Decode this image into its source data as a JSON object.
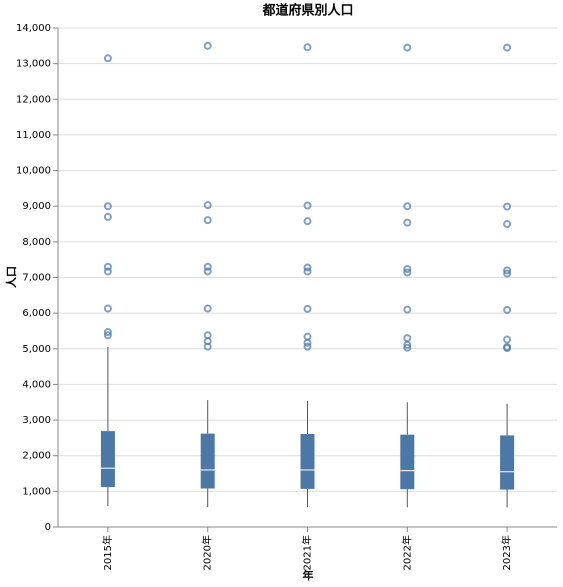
{
  "chart_data": {
    "type": "boxplot",
    "title": "都道府県別人口",
    "x_label": "年",
    "y_label": "人口",
    "categories": [
      "2015年",
      "2020年",
      "2021年",
      "2022年",
      "2023年"
    ],
    "color": "#4c78a8",
    "median_color": "#ffffff",
    "whisker_color": "#555555",
    "grid": true,
    "boxes": [
      {
        "min": 590,
        "q1": 1120,
        "median": 1650,
        "q3": 2690,
        "max": 5050,
        "outliers": [
          13150,
          9000,
          8700,
          7300,
          7170,
          6130,
          5470,
          5380
        ]
      },
      {
        "min": 560,
        "q1": 1080,
        "median": 1600,
        "q3": 2620,
        "max": 3560,
        "outliers": [
          13500,
          9030,
          8610,
          7300,
          7170,
          6130,
          5380,
          5210,
          5060
        ]
      },
      {
        "min": 560,
        "q1": 1070,
        "median": 1600,
        "q3": 2610,
        "max": 3530,
        "outliers": [
          13460,
          9020,
          8580,
          7280,
          7170,
          6120,
          5340,
          5170,
          5060
        ]
      },
      {
        "min": 550,
        "q1": 1060,
        "median": 1580,
        "q3": 2590,
        "max": 3500,
        "outliers": [
          13450,
          9000,
          8540,
          7240,
          7140,
          6100,
          5300,
          5110,
          5030
        ]
      },
      {
        "min": 550,
        "q1": 1050,
        "median": 1550,
        "q3": 2570,
        "max": 3460,
        "outliers": [
          13450,
          8990,
          8500,
          7200,
          7110,
          6090,
          5260,
          5050,
          5020
        ]
      }
    ],
    "ylim": [
      0,
      14000
    ],
    "yticks": [
      0,
      {
        "value": 1000,
        "label": "1,000"
      },
      {
        "value": 2000,
        "label": "2,000"
      },
      {
        "value": 3000,
        "label": "3,000"
      },
      {
        "value": 4000,
        "label": "4,000"
      },
      {
        "value": 5000,
        "label": "5,000"
      },
      {
        "value": 6000,
        "label": "6,000"
      },
      {
        "value": 7000,
        "label": "7,000"
      },
      {
        "value": 8000,
        "label": "8,000"
      },
      {
        "value": 9000,
        "label": "9,000"
      },
      {
        "value": 10000,
        "label": "10,000"
      },
      {
        "value": 11000,
        "label": "11,000"
      },
      {
        "value": 12000,
        "label": "12,000"
      },
      {
        "value": 13000,
        "label": "13,000"
      },
      {
        "value": 14000,
        "label": "14,000"
      }
    ]
  }
}
